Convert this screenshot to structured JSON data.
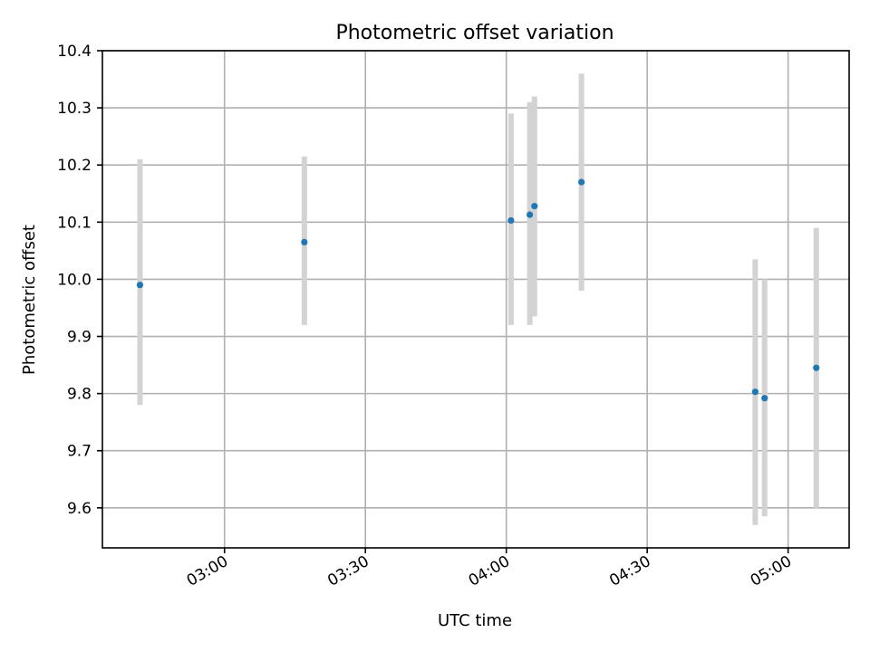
{
  "chart_data": {
    "type": "scatter",
    "title": "Photometric offset variation",
    "xlabel": "UTC time",
    "ylabel": "Photometric offset",
    "x_tick_labels": [
      "03:00",
      "03:30",
      "04:00",
      "04:30",
      "05:00"
    ],
    "x_ticks_time": [
      "03:00",
      "03:30",
      "04:00",
      "04:30",
      "05:00"
    ],
    "y_tick_labels": [
      "9.6",
      "9.7",
      "9.8",
      "9.9",
      "10.0",
      "10.1",
      "10.2",
      "10.3",
      "10.4"
    ],
    "y_ticks": [
      9.6,
      9.7,
      9.8,
      9.9,
      10.0,
      10.1,
      10.2,
      10.3,
      10.4
    ],
    "xlim": [
      "02:34",
      "05:13"
    ],
    "ylim": [
      9.53,
      10.4
    ],
    "grid": true,
    "colors": {
      "point": "#1f77b4",
      "errorbar": "#d3d3d3"
    },
    "series": [
      {
        "points": [
          {
            "x": "02:42",
            "y": 9.99,
            "ylow": 9.78,
            "yhigh": 10.21
          },
          {
            "x": "03:17",
            "y": 10.065,
            "ylow": 9.92,
            "yhigh": 10.215
          },
          {
            "x": "04:01",
            "y": 10.103,
            "ylow": 9.92,
            "yhigh": 10.29
          },
          {
            "x": "04:05",
            "y": 10.113,
            "ylow": 9.92,
            "yhigh": 10.31
          },
          {
            "x": "04:06",
            "y": 10.128,
            "ylow": 9.935,
            "yhigh": 10.32
          },
          {
            "x": "04:16",
            "y": 10.17,
            "ylow": 9.98,
            "yhigh": 10.36
          },
          {
            "x": "04:53",
            "y": 9.803,
            "ylow": 9.57,
            "yhigh": 10.035
          },
          {
            "x": "04:55",
            "y": 9.792,
            "ylow": 9.585,
            "yhigh": 10.0
          },
          {
            "x": "05:06",
            "y": 9.845,
            "ylow": 9.6,
            "yhigh": 10.09
          }
        ]
      }
    ]
  }
}
